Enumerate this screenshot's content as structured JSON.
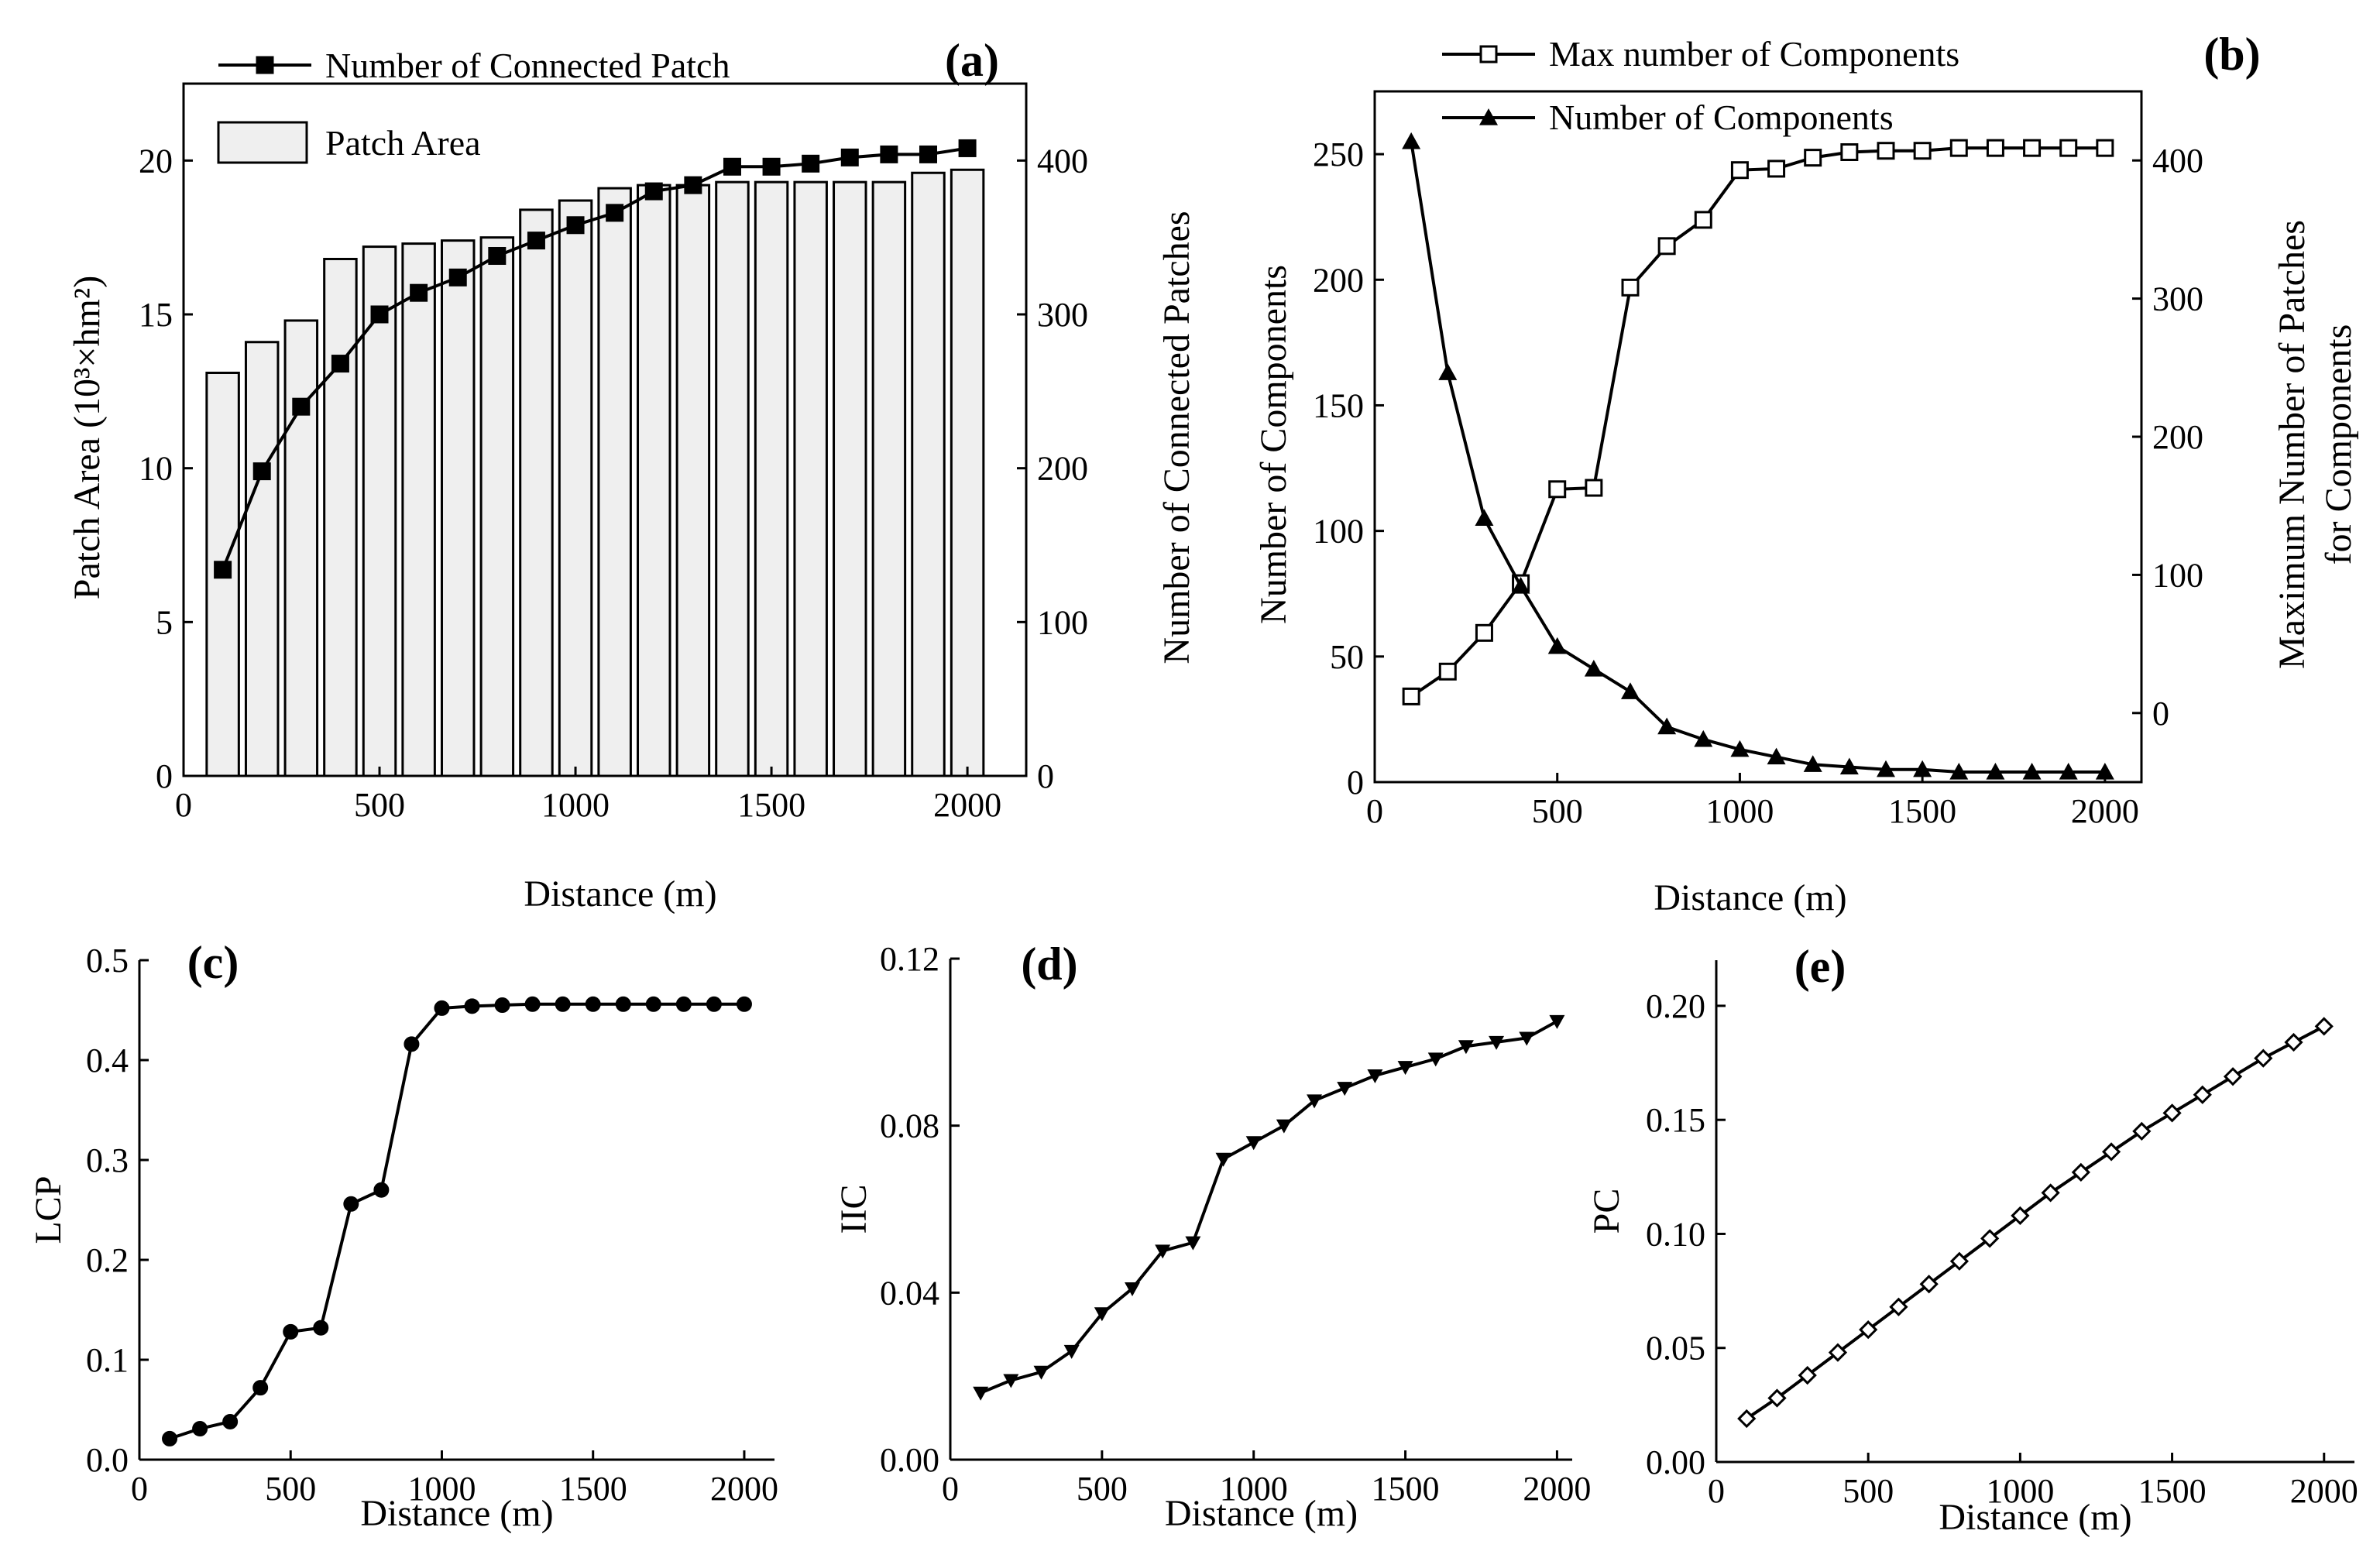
{
  "colors": {
    "bar_fill": "#efefef",
    "line": "#000000",
    "background": "#ffffff"
  },
  "chart_data": [
    {
      "id": "a",
      "type": "bar",
      "panel_label": "(a)",
      "xlabel": "Distance (m)",
      "ylabel_left": "Patch Area (10³×hm²)",
      "ylabel_right": "Number of Connected Patches",
      "xlim": [
        0,
        2150
      ],
      "xticks": [
        0,
        500,
        1000,
        1500,
        2000
      ],
      "ylim_left": [
        0,
        22.5
      ],
      "yticks_left": [
        0,
        5,
        10,
        15,
        20
      ],
      "ylim_right": [
        0,
        450
      ],
      "yticks_right": [
        0,
        100,
        200,
        300,
        400
      ],
      "x": [
        100,
        200,
        300,
        400,
        500,
        600,
        700,
        800,
        900,
        1000,
        1100,
        1200,
        1300,
        1400,
        1500,
        1600,
        1700,
        1800,
        1900,
        2000
      ],
      "series": [
        {
          "name": "Patch Area",
          "kind": "bar",
          "axis": "left",
          "values": [
            13.1,
            14.1,
            14.8,
            16.8,
            17.2,
            17.3,
            17.4,
            17.5,
            18.4,
            18.7,
            19.1,
            19.2,
            19.2,
            19.3,
            19.3,
            19.3,
            19.3,
            19.3,
            19.6,
            19.7
          ]
        },
        {
          "name": "Number of Connected Patch",
          "kind": "line",
          "marker": "square-filled",
          "axis": "right",
          "values": [
            134,
            198,
            240,
            268,
            300,
            314,
            324,
            338,
            348,
            358,
            366,
            380,
            384,
            396,
            396,
            398,
            402,
            404,
            404,
            408
          ]
        }
      ],
      "legend": [
        "Number of Connected Patch",
        "Patch Area"
      ]
    },
    {
      "id": "b",
      "type": "line",
      "panel_label": "(b)",
      "xlabel": "Distance (m)",
      "ylabel_left": "Number of Components",
      "ylabel_right": [
        "Maximum Number of Patches",
        "for Components"
      ],
      "xlim": [
        0,
        2100
      ],
      "xticks": [
        0,
        500,
        1000,
        1500,
        2000
      ],
      "ylim_left": [
        0,
        275
      ],
      "yticks_left": [
        0,
        50,
        100,
        150,
        200,
        250
      ],
      "ylim_right": [
        -50,
        450
      ],
      "yticks_right": [
        0,
        100,
        200,
        300,
        400
      ],
      "x": [
        100,
        200,
        300,
        400,
        500,
        600,
        700,
        800,
        900,
        1000,
        1100,
        1200,
        1300,
        1400,
        1500,
        1600,
        1700,
        1800,
        1900,
        2000
      ],
      "series": [
        {
          "name": "Max number of Components",
          "marker": "square-open",
          "axis": "right",
          "values": [
            12,
            30,
            58,
            94,
            162,
            163,
            308,
            338,
            357,
            393,
            394,
            402,
            406,
            407,
            407,
            409,
            409,
            409,
            409,
            409
          ]
        },
        {
          "name": "Number of Components",
          "marker": "triangle-up-filled",
          "axis": "left",
          "values": [
            255,
            163,
            105,
            78,
            54,
            45,
            36,
            22,
            17,
            13,
            10,
            7,
            6,
            5,
            5,
            4,
            4,
            4,
            4,
            4
          ]
        }
      ],
      "legend": [
        "Max number of Components",
        "Number of Components"
      ]
    },
    {
      "id": "c",
      "type": "line",
      "panel_label": "(c)",
      "xlabel": "Distance (m)",
      "ylabel": "LCP",
      "xlim": [
        0,
        2100
      ],
      "xticks": [
        0,
        500,
        1000,
        1500,
        2000
      ],
      "ylim": [
        0,
        0.5
      ],
      "yticks": [
        "0.0",
        "0.1",
        "0.2",
        "0.3",
        "0.4",
        "0.5"
      ],
      "x": [
        100,
        200,
        300,
        400,
        500,
        600,
        700,
        800,
        900,
        1000,
        1100,
        1200,
        1300,
        1400,
        1500,
        1600,
        1700,
        1800,
        1900,
        2000
      ],
      "series": [
        {
          "name": "LCP",
          "marker": "circle-filled",
          "values": [
            0.021,
            0.031,
            0.038,
            0.072,
            0.128,
            0.132,
            0.256,
            0.27,
            0.416,
            0.452,
            0.454,
            0.455,
            0.456,
            0.456,
            0.456,
            0.456,
            0.456,
            0.456,
            0.456,
            0.456
          ]
        }
      ]
    },
    {
      "id": "d",
      "type": "line",
      "panel_label": "(d)",
      "xlabel": "Distance (m)",
      "ylabel": "IIC",
      "xlim": [
        0,
        2050
      ],
      "xticks": [
        0,
        500,
        1000,
        1500,
        2000
      ],
      "ylim": [
        0,
        0.12
      ],
      "yticks": [
        "0.00",
        "0.04",
        "0.08",
        "0.12"
      ],
      "x": [
        100,
        200,
        300,
        400,
        500,
        600,
        700,
        800,
        900,
        1000,
        1100,
        1200,
        1300,
        1400,
        1500,
        1600,
        1700,
        1800,
        1900,
        2000
      ],
      "series": [
        {
          "name": "IIC",
          "marker": "triangle-down-filled",
          "values": [
            0.016,
            0.019,
            0.021,
            0.026,
            0.035,
            0.041,
            0.05,
            0.052,
            0.072,
            0.076,
            0.08,
            0.086,
            0.089,
            0.092,
            0.094,
            0.096,
            0.099,
            0.1,
            0.101,
            0.105
          ]
        }
      ]
    },
    {
      "id": "e",
      "type": "line",
      "panel_label": "(e)",
      "xlabel": "Distance (m)",
      "ylabel": "PC",
      "xlim": [
        0,
        2100
      ],
      "xticks": [
        0,
        500,
        1000,
        1500,
        2000
      ],
      "ylim": [
        0,
        0.22
      ],
      "yticks": [
        "0.00",
        "0.05",
        "0.10",
        "0.15",
        "0.20"
      ],
      "x": [
        100,
        200,
        300,
        400,
        500,
        600,
        700,
        800,
        900,
        1000,
        1100,
        1200,
        1300,
        1400,
        1500,
        1600,
        1700,
        1800,
        1900,
        2000
      ],
      "series": [
        {
          "name": "PC",
          "marker": "diamond-open",
          "values": [
            0.019,
            0.028,
            0.038,
            0.048,
            0.058,
            0.068,
            0.078,
            0.088,
            0.098,
            0.108,
            0.118,
            0.127,
            0.136,
            0.145,
            0.153,
            0.161,
            0.169,
            0.177,
            0.184,
            0.191
          ]
        }
      ]
    }
  ]
}
